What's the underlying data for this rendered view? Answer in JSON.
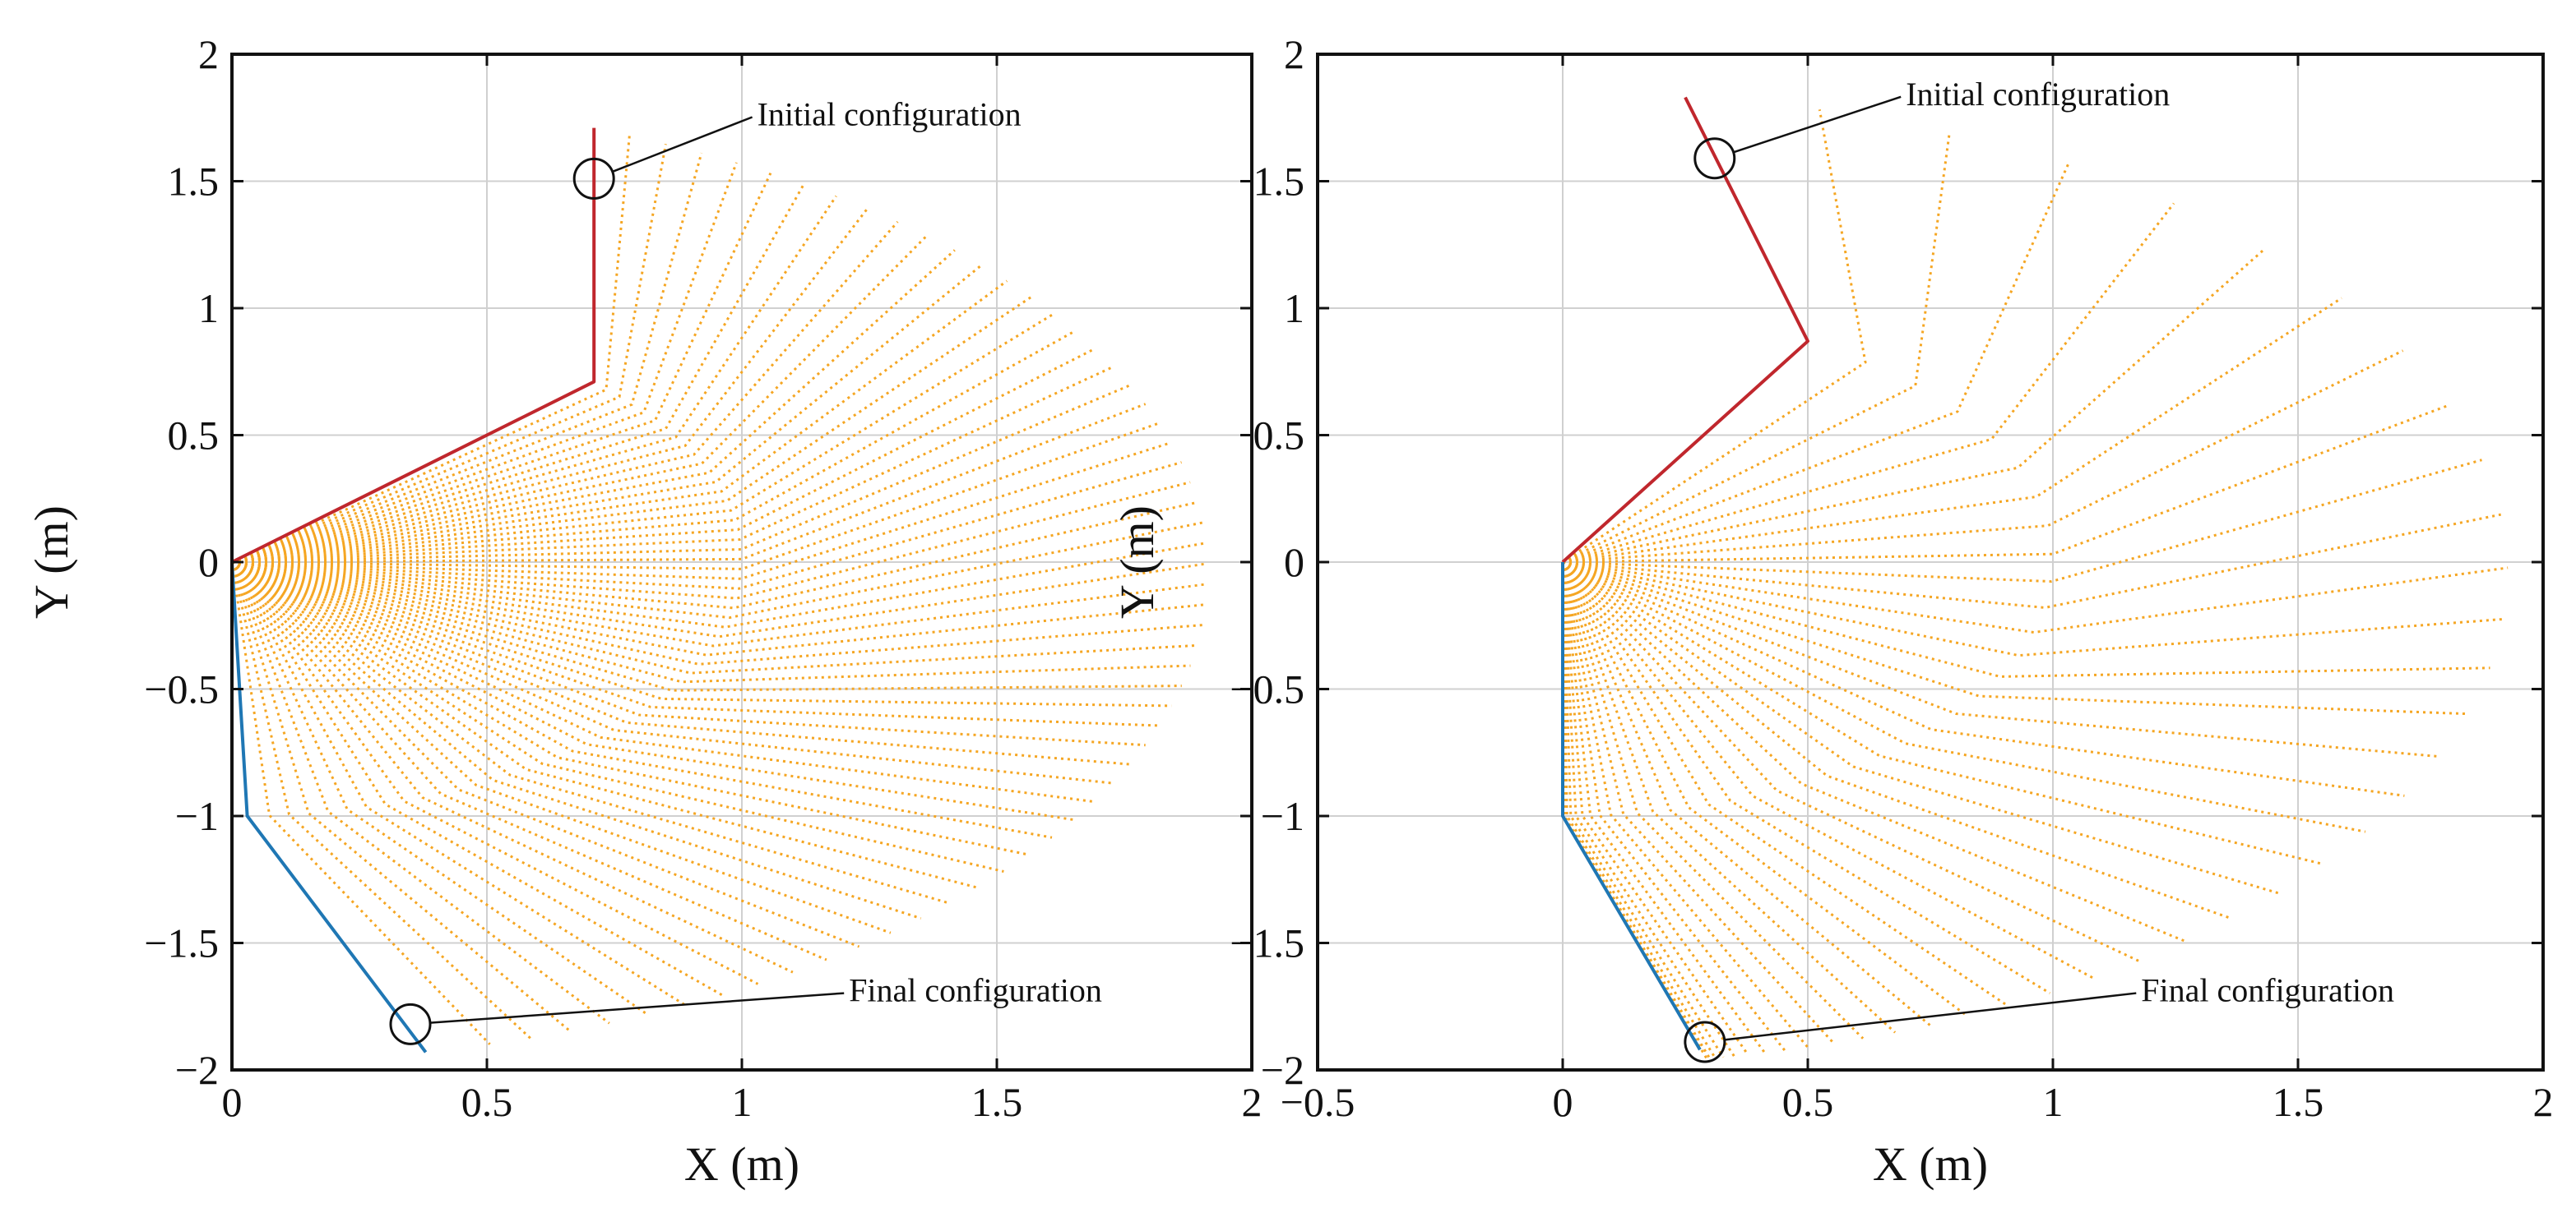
{
  "chart_data": [
    {
      "type": "line",
      "panel": "left",
      "xlabel": "X (m)",
      "ylabel": "Y (m)",
      "xlim": [
        0,
        2
      ],
      "ylim": [
        -2,
        2
      ],
      "xticks": [
        0,
        0.5,
        1,
        1.5,
        2
      ],
      "xtick_labels": [
        "0",
        "0.5",
        "1",
        "1.5",
        "2"
      ],
      "yticks": [
        -2,
        -1.5,
        -1,
        -0.5,
        0,
        0.5,
        1,
        1.5,
        2
      ],
      "ytick_labels": [
        "−2",
        "−1.5",
        "−1",
        "−0.5",
        "0",
        "0.5",
        "1",
        "1.5",
        "2"
      ],
      "grid": true,
      "colors": {
        "initial": "#c0272d",
        "final": "#1f77b4",
        "trajectory": "#f5a623"
      },
      "initial_configuration": [
        [
          0,
          0
        ],
        [
          0.71,
          0.71
        ],
        [
          0.71,
          1.71
        ]
      ],
      "final_configuration": [
        [
          0,
          0
        ],
        [
          0.03,
          -1.0
        ],
        [
          0.38,
          -1.93
        ]
      ],
      "trajectory": {
        "steps": 60,
        "elbow_angle_start_deg": 45,
        "elbow_angle_end_deg": -88,
        "relative_angle_start_deg": 45,
        "relative_angle_end_deg": 21,
        "link_lengths": [
          1.0,
          1.0
        ]
      },
      "annotations": [
        {
          "text": "Initial configuration",
          "point": [
            0.71,
            1.51
          ],
          "label_at": [
            1.03,
            1.72
          ]
        },
        {
          "text": "Final configuration",
          "point": [
            0.35,
            -1.82
          ],
          "label_at": [
            1.21,
            -1.73
          ]
        }
      ]
    },
    {
      "type": "line",
      "panel": "right",
      "xlabel": "X (m)",
      "ylabel": "Y (m)",
      "xlim": [
        -0.5,
        2
      ],
      "ylim": [
        -2,
        2
      ],
      "xticks": [
        -0.5,
        0,
        0.5,
        1,
        1.5,
        2
      ],
      "xtick_labels": [
        "−0.5",
        "0",
        "0.5",
        "1",
        "1.5",
        "2"
      ],
      "yticks": [
        -2,
        -1.5,
        -1,
        -0.5,
        0,
        0.5,
        1,
        1.5,
        2
      ],
      "ytick_labels": [
        "−2",
        "−1.5",
        "−1",
        "−0.5",
        "0",
        "0.5",
        "1",
        "1.5",
        "2"
      ],
      "grid": true,
      "colors": {
        "initial": "#c0272d",
        "final": "#1f77b4",
        "trajectory": "#f5a623"
      },
      "initial_configuration": [
        [
          0,
          0
        ],
        [
          0.5,
          0.87
        ],
        [
          0.25,
          1.83
        ]
      ],
      "final_configuration": [
        [
          0,
          0
        ],
        [
          0,
          -1.0
        ],
        [
          0.28,
          -1.92
        ]
      ],
      "trajectory": {
        "steps": 40,
        "elbow_angle_start_deg": 60,
        "elbow_angle_end_deg": -90,
        "relative_angle_start_deg": 45,
        "relative_angle_end_deg": 17,
        "link_lengths": [
          1.0,
          1.0
        ],
        "easing": "ease-out"
      },
      "annotations": [
        {
          "text": "Initial configuration",
          "point": [
            0.31,
            1.59
          ],
          "label_at": [
            0.7,
            1.8
          ]
        },
        {
          "text": "Final configuration",
          "point": [
            0.29,
            -1.89
          ],
          "label_at": [
            1.18,
            -1.73
          ]
        }
      ]
    }
  ]
}
